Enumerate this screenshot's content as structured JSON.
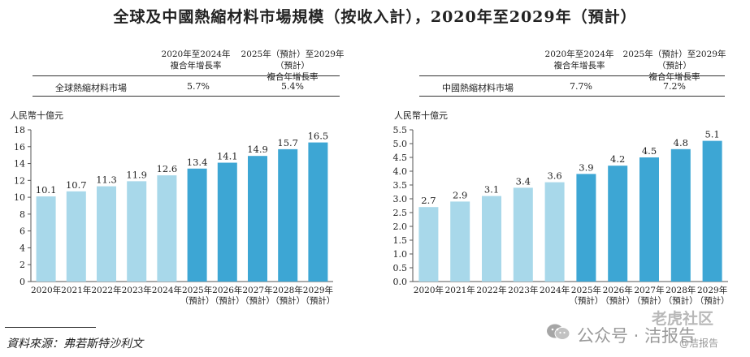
{
  "title": "全球及中國熱縮材料市場規模（按收入計），2020年至2029年（預計）",
  "colors": {
    "historical": "#a8d8ea",
    "forecast": "#3da6d4",
    "axis": "#555555"
  },
  "panels": [
    {
      "cagr_headers": [
        "2020年至2024年\n複合年增長率",
        "2025年（預計）至2029年（預計）\n複合年增長率"
      ],
      "cagr_row_label": "全球熱縮材料市場",
      "cagr_values": [
        "5.7%",
        "5.4%"
      ],
      "ylabel": "人民幣十億元"
    },
    {
      "cagr_headers": [
        "2020年至2024年\n複合年增長率",
        "2025年（預計）至2029年（預計）\n複合年增長率"
      ],
      "cagr_row_label": "中國熱縮材料市場",
      "cagr_values": [
        "7.7%",
        "7.2%"
      ],
      "ylabel": "人民幣十億元"
    }
  ],
  "chart_data": [
    {
      "type": "bar",
      "ylabel": "人民幣十億元",
      "ylim": [
        0,
        18
      ],
      "yticks": [
        0,
        2,
        4,
        6,
        8,
        10,
        12,
        14,
        16,
        18
      ],
      "categories": [
        "2020年",
        "2021年",
        "2022年",
        "2023年",
        "2024年",
        "2025年\n（預計）",
        "2026年\n（預計）",
        "2027年\n（預計）",
        "2028年\n（預計）",
        "2029年\n（預計）"
      ],
      "values": [
        10.1,
        10.7,
        11.3,
        11.9,
        12.6,
        13.4,
        14.1,
        14.9,
        15.7,
        16.5
      ],
      "value_labels": [
        "10.1",
        "10.7",
        "11.3",
        "11.9",
        "12.6",
        "13.4",
        "14.1",
        "14.9",
        "15.7",
        "16.5"
      ],
      "forecast": [
        false,
        false,
        false,
        false,
        false,
        true,
        true,
        true,
        true,
        true
      ],
      "grid": false
    },
    {
      "type": "bar",
      "ylabel": "人民幣十億元",
      "ylim": [
        0,
        5.5
      ],
      "yticks": [
        "0.0",
        "0.5",
        "1.0",
        "1.5",
        "2.0",
        "2.5",
        "3.0",
        "3.5",
        "4.0",
        "4.5",
        "5.0",
        "5.5"
      ],
      "categories": [
        "2020年",
        "2021年",
        "2022年",
        "2023年",
        "2024年",
        "2025年\n（預計）",
        "2026年\n（預計）",
        "2027年\n（預計）",
        "2028年\n（預計）",
        "2029年\n（預計）"
      ],
      "values": [
        2.7,
        2.9,
        3.1,
        3.4,
        3.6,
        3.9,
        4.2,
        4.5,
        4.8,
        5.1
      ],
      "value_labels": [
        "2.7",
        "2.9",
        "3.1",
        "3.4",
        "3.6",
        "3.9",
        "4.2",
        "4.5",
        "4.8",
        "5.1"
      ],
      "forecast": [
        false,
        false,
        false,
        false,
        false,
        true,
        true,
        true,
        true,
        true
      ],
      "grid": false
    }
  ],
  "source": "資料來源：弗若斯特沙利文",
  "watermark": {
    "main": "公众号 · 洁报告",
    "brand": "老虎社区",
    "small": "@洁报告"
  }
}
